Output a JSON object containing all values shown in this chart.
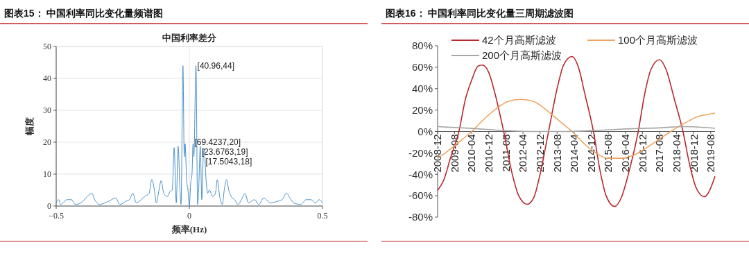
{
  "chart_data": [
    {
      "type": "line",
      "title": "图表15：  中国利率同比变化量频谱图",
      "subtitle": "中国利率差分",
      "xlabel": "频率(Hz)",
      "ylabel": "幅度",
      "xlim": [
        -0.5,
        0.5
      ],
      "xticks": [
        {
          "value": -0.5,
          "label": "−0.5"
        },
        0,
        0.5
      ],
      "ylim": [
        0,
        50
      ],
      "yticks": [
        0,
        10,
        20,
        30,
        40,
        50
      ],
      "grid": true,
      "legend": false,
      "series": [
        {
          "color": "#4a90c8",
          "x": [
            -0.5,
            -0.49,
            -0.484,
            -0.459,
            -0.442,
            -0.429,
            -0.407,
            -0.383,
            -0.366,
            -0.355,
            -0.338,
            -0.303,
            -0.277,
            -0.26,
            -0.238,
            -0.225,
            -0.212,
            -0.199,
            -0.181,
            -0.168,
            -0.151,
            -0.141,
            -0.131,
            -0.124,
            -0.114,
            -0.106,
            -0.096,
            -0.082,
            -0.073,
            -0.064,
            -0.057,
            -0.049,
            -0.042,
            -0.035,
            -0.031,
            -0.024,
            -0.019,
            -0.016,
            -0.01,
            -0.005,
            0,
            0.005,
            0.01,
            0.014,
            0.017,
            0.025,
            0.031,
            0.035,
            0.041,
            0.047,
            0.052,
            0.056,
            0.063,
            0.069,
            0.075,
            0.088,
            0.098,
            0.105,
            0.114,
            0.124,
            0.131,
            0.14,
            0.148,
            0.157,
            0.17,
            0.183,
            0.196,
            0.209,
            0.222,
            0.244,
            0.261,
            0.279,
            0.305,
            0.331,
            0.348,
            0.365,
            0.378,
            0.391,
            0.418,
            0.439,
            0.457,
            0.474,
            0.487,
            0.5
          ],
          "values": [
            1,
            2,
            0.5,
            2,
            2,
            0.5,
            1,
            3,
            4,
            2,
            0.5,
            1.5,
            2.5,
            0.5,
            1.5,
            2,
            4,
            1,
            2,
            3,
            4,
            8.3,
            5,
            1,
            5,
            8,
            4,
            3,
            4.5,
            5,
            18.3,
            1,
            18.7,
            5,
            0.5,
            44,
            15.5,
            19.5,
            8,
            5,
            0,
            7,
            10,
            19.5,
            15.5,
            44,
            0.5,
            5,
            18.7,
            2,
            15,
            18,
            8,
            4,
            5,
            3,
            4,
            8.2,
            3,
            0.5,
            5,
            8.3,
            5,
            3,
            2,
            0.5,
            2,
            4,
            1,
            2,
            0.5,
            2.5,
            1,
            1.5,
            2,
            4,
            2.5,
            1,
            0.5,
            2,
            2,
            1,
            2,
            1
          ]
        }
      ],
      "annotations": [
        {
          "text": "[40.96,44]",
          "x": 0.025,
          "y": 44
        },
        {
          "text": "[69.4237,20]",
          "x": 0.014,
          "y": 20
        },
        {
          "text": "[23.6763,19]",
          "x": 0.041,
          "y": 19
        },
        {
          "text": "[17.5043,18]",
          "x": 0.056,
          "y": 18
        }
      ]
    },
    {
      "type": "line",
      "title": "图表16：  中国利率同比变化量三周期滤波图",
      "xlim": [
        "2008-12",
        "2019-10"
      ],
      "xticks": [
        "2008-12",
        "2009-08",
        "2010-04",
        "2010-12",
        "2011-08",
        "2012-04",
        "2012-12",
        "2013-08",
        "2014-04",
        "2014-12",
        "2015-08",
        "2016-04",
        "2016-12",
        "2017-08",
        "2018-04",
        "2018-12",
        "2019-08"
      ],
      "ylim": [
        -80,
        80
      ],
      "yticks": [
        {
          "value": -80,
          "label": "-80%"
        },
        {
          "value": -60,
          "label": "-60%"
        },
        {
          "value": -40,
          "label": "-40%"
        },
        {
          "value": -20,
          "label": "-20%"
        },
        {
          "value": 0,
          "label": "0%"
        },
        {
          "value": 20,
          "label": "20%"
        },
        {
          "value": 40,
          "label": "40%"
        },
        {
          "value": 60,
          "label": "60%"
        },
        {
          "value": 80,
          "label": "80%"
        }
      ],
      "grid": false,
      "legend": "top",
      "series": [
        {
          "name": "42个月高斯滤波",
          "color": "#b8282c",
          "x": [
            "2008-12",
            "2009-03",
            "2009-06",
            "2009-10",
            "2010-01",
            "2010-04",
            "2010-07",
            "2010-09",
            "2010-12",
            "2011-03",
            "2011-07",
            "2011-11",
            "2012-02",
            "2012-06",
            "2012-09",
            "2012-12",
            "2013-04",
            "2013-08",
            "2013-11",
            "2014-03",
            "2014-06",
            "2014-09",
            "2015-01",
            "2015-04",
            "2015-07",
            "2015-11",
            "2016-02",
            "2016-06",
            "2016-10",
            "2017-01",
            "2017-04",
            "2017-08",
            "2017-11",
            "2018-03",
            "2018-07",
            "2018-10",
            "2019-01",
            "2019-05",
            "2019-07",
            "2019-10"
          ],
          "values": [
            -55,
            -45,
            -25,
            0,
            30,
            48,
            61,
            62,
            55,
            35,
            0,
            -40,
            -60,
            -68,
            -62,
            -40,
            0,
            40,
            62,
            70,
            60,
            35,
            0,
            -35,
            -60,
            -70,
            -62,
            -35,
            0,
            35,
            58,
            67,
            58,
            30,
            0,
            -30,
            -52,
            -61,
            -57,
            -42
          ]
        },
        {
          "name": "100个月高斯滤波",
          "color": "#f0a45e",
          "x": [
            "2008-12",
            "2009-05",
            "2009-10",
            "2010-04",
            "2010-10",
            "2011-04",
            "2011-09",
            "2012-03",
            "2012-09",
            "2013-03",
            "2013-09",
            "2014-03",
            "2014-09",
            "2015-02",
            "2015-08",
            "2016-02",
            "2016-08",
            "2017-02",
            "2017-08",
            "2018-02",
            "2018-08",
            "2019-02",
            "2019-07",
            "2019-10"
          ],
          "values": [
            -25,
            -18,
            -10,
            0,
            12,
            22,
            28,
            30,
            28,
            20,
            10,
            0,
            -12,
            -20,
            -25,
            -25,
            -22,
            -15,
            -7,
            1,
            8,
            14,
            16,
            17
          ]
        },
        {
          "name": "200个月高斯滤波",
          "color": "#a6a6a6",
          "x": [
            "2008-12",
            "2010-03",
            "2011-06",
            "2012-09",
            "2013-12",
            "2015-03",
            "2016-06",
            "2017-09",
            "2018-07",
            "2019-10"
          ],
          "values": [
            4.5,
            3,
            1,
            0,
            0,
            1,
            2.5,
            3.5,
            4.5,
            3
          ]
        }
      ]
    }
  ]
}
